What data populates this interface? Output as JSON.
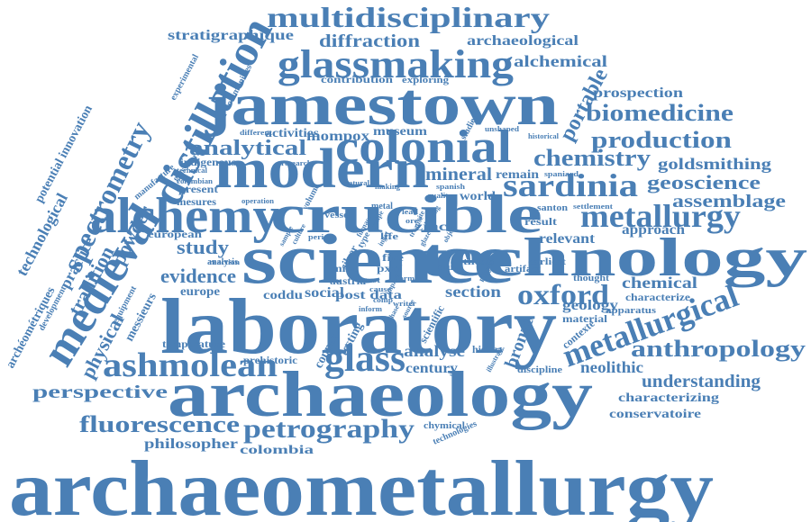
{
  "color": "#4a7fb5",
  "words": [
    {
      "id": "archaeometallurgy",
      "text": "archaeometallurgy"
    },
    {
      "id": "laboratory",
      "text": "laboratory"
    },
    {
      "id": "science",
      "text": "science"
    },
    {
      "id": "archaeology",
      "text": "archaeology"
    },
    {
      "id": "jamestown",
      "text": "jamestown"
    },
    {
      "id": "crucible",
      "text": "crucible"
    },
    {
      "id": "technology",
      "text": "technology"
    },
    {
      "id": "modern",
      "text": "modern"
    },
    {
      "id": "alchemy",
      "text": "alchemy"
    },
    {
      "id": "colonial",
      "text": "colonial"
    },
    {
      "id": "glassmaking",
      "text": "glassmaking"
    },
    {
      "id": "multidisciplinary",
      "text": "multidisciplinary"
    },
    {
      "id": "distillation",
      "text": "distillation"
    },
    {
      "id": "spectrometry",
      "text": "spectrometry"
    },
    {
      "id": "medieval",
      "text": "medieval"
    },
    {
      "id": "metallurgy",
      "text": "metallurgy"
    },
    {
      "id": "metallurgical",
      "text": "metallurgical"
    },
    {
      "id": "sardinia",
      "text": "sardinia"
    },
    {
      "id": "oxford",
      "text": "oxford"
    },
    {
      "id": "ashmolean",
      "text": "ashmolean"
    },
    {
      "id": "glass",
      "text": "glass"
    },
    {
      "id": "petrography",
      "text": "petrography"
    },
    {
      "id": "fluorescence",
      "text": "fluorescence"
    },
    {
      "id": "anthropology",
      "text": "anthropology"
    },
    {
      "id": "biomedicine",
      "text": "biomedicine"
    },
    {
      "id": "production",
      "text": "production"
    },
    {
      "id": "chemistry",
      "text": "chemistry"
    },
    {
      "id": "analytical",
      "text": "analytical"
    },
    {
      "id": "diffraction",
      "text": "diffraction"
    },
    {
      "id": "geoscience",
      "text": "geoscience"
    },
    {
      "id": "assemblage",
      "text": "assemblage"
    },
    {
      "id": "goldsmithing",
      "text": "goldsmithing"
    },
    {
      "id": "prospection",
      "text": "prospection"
    },
    {
      "id": "alchemical",
      "text": "alchemical"
    },
    {
      "id": "archaeological",
      "text": "archaeological"
    },
    {
      "id": "portable",
      "text": "portable"
    },
    {
      "id": "perspective",
      "text": "perspective"
    },
    {
      "id": "understanding",
      "text": "understanding"
    },
    {
      "id": "characterizing",
      "text": "characterizing"
    },
    {
      "id": "conservatoire",
      "text": "conservatoire"
    },
    {
      "id": "neolithic",
      "text": "neolithic"
    },
    {
      "id": "chemical",
      "text": "chemical"
    },
    {
      "id": "study",
      "text": "study"
    },
    {
      "id": "evidence",
      "text": "evidence"
    },
    {
      "id": "mineral",
      "text": "mineral"
    },
    {
      "id": "century",
      "text": "century"
    },
    {
      "id": "analyse",
      "text": "analyse"
    },
    {
      "id": "section",
      "text": "section"
    },
    {
      "id": "bronze",
      "text": "bronze"
    },
    {
      "id": "geology",
      "text": "geology"
    },
    {
      "id": "approach",
      "text": "approach"
    },
    {
      "id": "relevant",
      "text": "relevant"
    },
    {
      "id": "philosopher",
      "text": "philosopher"
    },
    {
      "id": "colombia",
      "text": "colombia"
    },
    {
      "id": "stratigraphique",
      "text": "stratigraphique"
    },
    {
      "id": "contribution",
      "text": "contribution"
    },
    {
      "id": "exploring",
      "text": "exploring"
    },
    {
      "id": "mompox",
      "text": "mompox"
    },
    {
      "id": "museum",
      "text": "museum"
    },
    {
      "id": "activities",
      "text": "activities"
    },
    {
      "id": "indigenous",
      "text": "indigenous"
    },
    {
      "id": "technological",
      "text": "technological"
    },
    {
      "id": "potential-innovation",
      "text": "potential innovation"
    },
    {
      "id": "tradition",
      "text": "tradition"
    },
    {
      "id": "practice",
      "text": "practice"
    },
    {
      "id": "powder",
      "text": "powder"
    },
    {
      "id": "physical",
      "text": "physical"
    },
    {
      "id": "archeometriques",
      "text": "archéométriques"
    },
    {
      "id": "development",
      "text": "development"
    },
    {
      "id": "messieurs",
      "text": "messieurs"
    },
    {
      "id": "equipment",
      "text": "equipment"
    },
    {
      "id": "european",
      "text": "european"
    },
    {
      "id": "europe",
      "text": "europe"
    },
    {
      "id": "coddu",
      "text": "coddu"
    },
    {
      "id": "social",
      "text": "social"
    },
    {
      "id": "testing",
      "text": "testing"
    },
    {
      "id": "copper",
      "text": "copper"
    },
    {
      "id": "prehistoric",
      "text": "prehistoric"
    },
    {
      "id": "temperature",
      "text": "temperature"
    },
    {
      "id": "post-data",
      "text": "post data"
    },
    {
      "id": "scientific",
      "text": "scientific"
    },
    {
      "id": "history",
      "text": "history"
    },
    {
      "id": "discipline",
      "text": "discipline"
    },
    {
      "id": "contexte",
      "text": "contexte"
    },
    {
      "id": "material",
      "text": "material"
    },
    {
      "id": "apparatus",
      "text": "apparatus"
    },
    {
      "id": "characterize",
      "text": "characterize"
    },
    {
      "id": "thought",
      "text": "thought"
    },
    {
      "id": "earliest",
      "text": "earliest"
    },
    {
      "id": "artifact",
      "text": "artifact"
    },
    {
      "id": "moyen",
      "text": "moyen"
    },
    {
      "id": "thesis",
      "text": "thesis"
    },
    {
      "id": "result",
      "text": "result"
    },
    {
      "id": "santon",
      "text": "santon"
    },
    {
      "id": "settlement",
      "text": "settlement"
    },
    {
      "id": "spaniard",
      "text": "spaniard"
    },
    {
      "id": "remain",
      "text": "remain"
    },
    {
      "id": "world",
      "text": "world"
    },
    {
      "id": "zinc",
      "text": "zinc"
    },
    {
      "id": "silver",
      "text": "silver"
    },
    {
      "id": "type",
      "text": "type"
    },
    {
      "id": "mint",
      "text": "mint"
    },
    {
      "id": "austria",
      "text": "austria"
    },
    {
      "id": "pxrf",
      "text": "pxrf"
    },
    {
      "id": "fire",
      "text": "fire"
    },
    {
      "id": "life",
      "text": "life"
    },
    {
      "id": "chymical",
      "text": "chymical"
    },
    {
      "id": "technologies",
      "text": "technologies"
    },
    {
      "id": "historical",
      "text": "historical"
    },
    {
      "id": "unshaped",
      "text": "unshaped"
    },
    {
      "id": "studies",
      "text": "studies"
    },
    {
      "id": "research",
      "text": "research"
    },
    {
      "id": "different",
      "text": "different"
    },
    {
      "id": "communities",
      "text": "communities"
    },
    {
      "id": "experimental",
      "text": "experimental"
    },
    {
      "id": "manufacture",
      "text": "manufacture"
    },
    {
      "id": "glassware",
      "text": "glassware"
    },
    {
      "id": "technical",
      "text": "technical"
    },
    {
      "id": "columbian",
      "text": "columbian"
    },
    {
      "id": "present",
      "text": "present"
    },
    {
      "id": "mesures",
      "text": "mesures"
    },
    {
      "id": "operation",
      "text": "operation"
    },
    {
      "id": "reaction",
      "text": "reaction"
    },
    {
      "id": "analysis",
      "text": "analysis"
    },
    {
      "id": "natural",
      "text": "natural"
    },
    {
      "id": "making",
      "text": "making"
    },
    {
      "id": "spanish",
      "text": "spanish"
    },
    {
      "id": "vessel",
      "text": "vessel"
    },
    {
      "id": "metal",
      "text": "metal"
    },
    {
      "id": "quality",
      "text": "quality"
    },
    {
      "id": "cruz",
      "text": "cruz"
    },
    {
      "id": "illustrate",
      "text": "illustrate"
    },
    {
      "id": "period",
      "text": "period"
    },
    {
      "id": "culture",
      "text": "culture"
    },
    {
      "id": "volume",
      "text": "volume"
    },
    {
      "id": "sample",
      "text": "sample"
    },
    {
      "id": "test",
      "text": "test"
    },
    {
      "id": "impact",
      "text": "impact"
    },
    {
      "id": "writer",
      "text": "writer"
    },
    {
      "id": "cause",
      "text": "cause"
    },
    {
      "id": "comp",
      "text": "comp"
    },
    {
      "id": "inform",
      "text": "inform"
    },
    {
      "id": "form",
      "text": "form"
    },
    {
      "id": "source",
      "text": "source"
    },
    {
      "id": "lead",
      "text": "lead"
    },
    {
      "id": "treatise",
      "text": "treatise"
    },
    {
      "id": "object",
      "text": "object"
    },
    {
      "id": "ore",
      "text": "ore"
    },
    {
      "id": "glaze",
      "text": "glaze"
    },
    {
      "id": "phase",
      "text": "phase"
    },
    {
      "id": "ingot",
      "text": "ingot"
    },
    {
      "id": "slag",
      "text": "slag"
    },
    {
      "id": "recipe",
      "text": "recipe"
    },
    {
      "id": "furnace",
      "text": "furnace"
    },
    {
      "id": "site",
      "text": "site"
    }
  ]
}
